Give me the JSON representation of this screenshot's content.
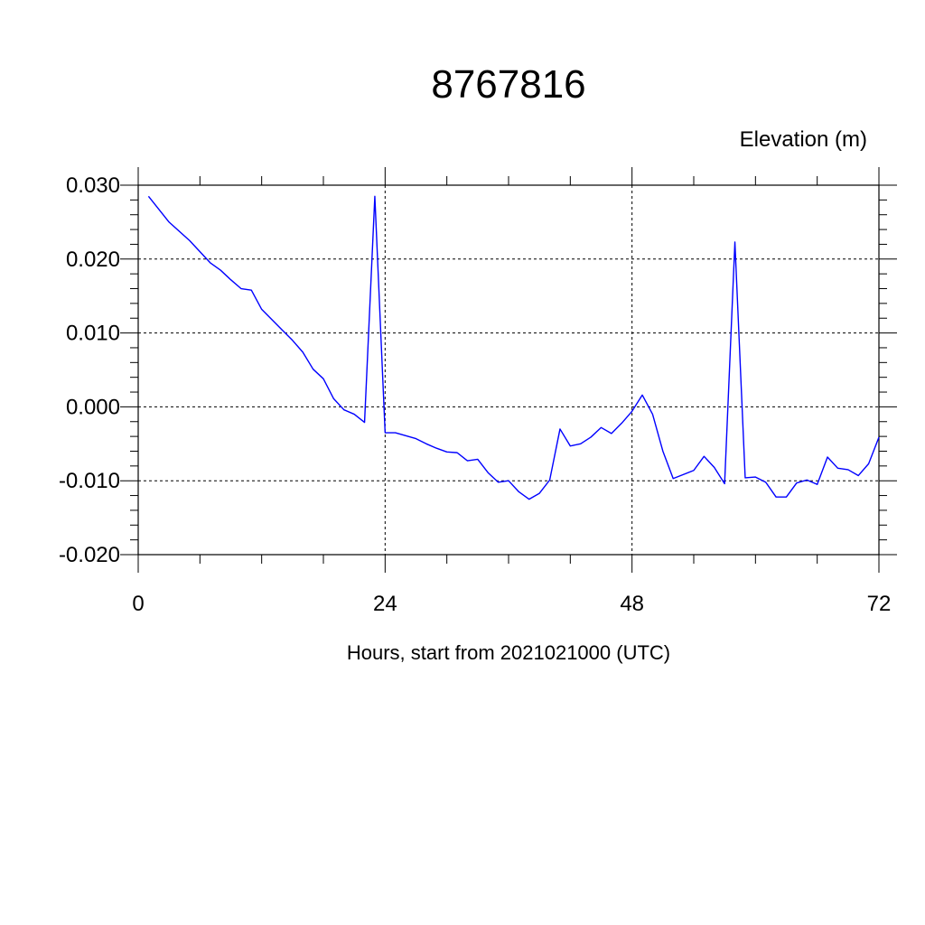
{
  "chart_data": {
    "type": "line",
    "title": "8767816",
    "ylabel": "Elevation (m)",
    "xlabel": "Hours, start from 2021021000 (UTC)",
    "xlim": [
      0,
      72
    ],
    "ylim": [
      -0.02,
      0.03
    ],
    "xticks": [
      0,
      24,
      48,
      72
    ],
    "xtick_labels": [
      "0",
      "24",
      "48",
      "72"
    ],
    "yticks": [
      -0.02,
      -0.01,
      0.0,
      0.01,
      0.02,
      0.03
    ],
    "ytick_labels": [
      "-0.020",
      "-0.010",
      "0.000",
      "0.010",
      "0.020",
      "0.030"
    ],
    "grid": "dashed at major ticks",
    "series": [
      {
        "color": "#0000ff",
        "x": [
          1,
          3,
          5,
          6,
          7,
          8,
          9,
          10,
          11,
          12,
          13,
          14,
          15,
          16,
          17,
          18,
          19,
          20,
          21,
          22,
          23,
          24,
          25,
          26,
          27,
          28,
          29,
          30,
          31,
          32,
          33,
          34,
          35,
          36,
          37,
          38,
          39,
          40,
          41,
          42,
          43,
          44,
          45,
          46,
          47,
          48,
          49,
          50,
          51,
          52,
          54,
          55,
          56,
          57,
          58,
          59,
          60,
          61,
          62,
          63,
          64,
          65,
          66,
          67,
          68,
          69,
          70,
          71,
          72
        ],
        "y": [
          0.0285,
          0.025,
          0.0225,
          0.021,
          0.0195,
          0.0185,
          0.0172,
          0.016,
          0.0158,
          0.0132,
          0.0118,
          0.0104,
          0.009,
          0.0074,
          0.0051,
          0.0038,
          0.0011,
          -0.0004,
          -0.001,
          -0.0021,
          0.0285,
          -0.0035,
          -0.0035,
          -0.0039,
          -0.0043,
          -0.005,
          -0.0056,
          -0.0061,
          -0.0062,
          -0.0073,
          -0.0071,
          -0.0089,
          -0.0102,
          -0.01,
          -0.0115,
          -0.0125,
          -0.0117,
          -0.0099,
          -0.003,
          -0.0053,
          -0.005,
          -0.0041,
          -0.0028,
          -0.0036,
          -0.0022,
          -0.0006,
          0.0016,
          -0.001,
          -0.006,
          -0.0097,
          -0.0086,
          -0.0067,
          -0.0082,
          -0.0104,
          0.0223,
          -0.0096,
          -0.0095,
          -0.0102,
          -0.0122,
          -0.0122,
          -0.0103,
          -0.0099,
          -0.0105,
          -0.0068,
          -0.0083,
          -0.0085,
          -0.0093,
          -0.0077,
          -0.0041
        ]
      }
    ]
  }
}
